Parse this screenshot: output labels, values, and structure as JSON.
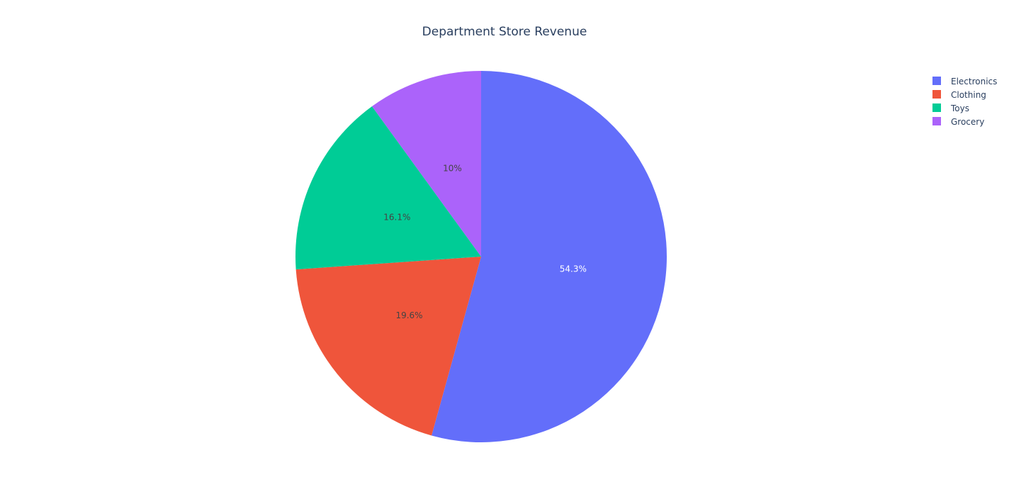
{
  "chart_data": {
    "type": "pie",
    "title": "Department Store Revenue",
    "labels": [
      "Electronics",
      "Clothing",
      "Toys",
      "Grocery"
    ],
    "values": [
      54.3,
      19.6,
      16.1,
      10
    ],
    "percent_labels": [
      "54.3%",
      "19.6%",
      "16.1%",
      "10%"
    ],
    "colors": [
      "#636efa",
      "#ef553b",
      "#00cc96",
      "#ab63fa"
    ],
    "label_colors": [
      "#ffffff",
      "#444444",
      "#444444",
      "#444444"
    ],
    "start_angle_deg": 90,
    "direction": "clockwise",
    "legend_position": "top-right"
  }
}
